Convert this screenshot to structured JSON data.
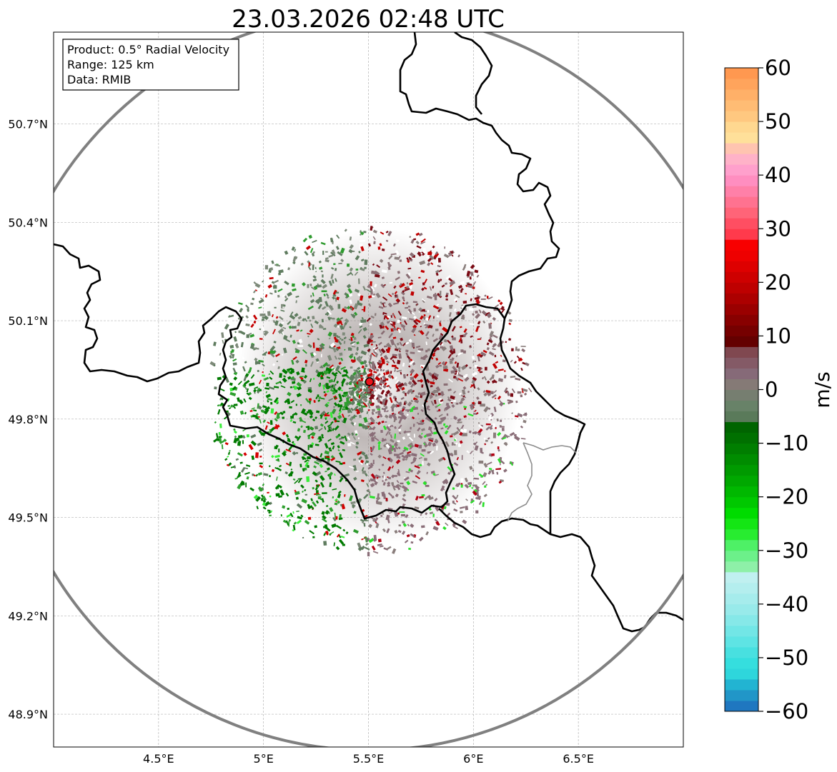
{
  "title": "23.03.2026 02:48 UTC",
  "info_box": {
    "product": "Product: 0.5° Radial Velocity",
    "range": "Range: 125 km",
    "source": "Data: RMIB"
  },
  "map": {
    "lon_range": [
      4.0,
      7.0
    ],
    "lat_range": [
      48.8,
      50.98
    ],
    "lon_ticks": [
      {
        "value": 4.5,
        "label": "4.5°E"
      },
      {
        "value": 5.0,
        "label": "5°E"
      },
      {
        "value": 5.5,
        "label": "5.5°E"
      },
      {
        "value": 6.0,
        "label": "6°E"
      },
      {
        "value": 6.5,
        "label": "6.5°E"
      }
    ],
    "lat_ticks": [
      {
        "value": 48.9,
        "label": "48.9°N"
      },
      {
        "value": 49.2,
        "label": "49.2°N"
      },
      {
        "value": 49.5,
        "label": "49.5°N"
      },
      {
        "value": 49.8,
        "label": "49.8°N"
      },
      {
        "value": 50.1,
        "label": "50.1°N"
      },
      {
        "value": 50.4,
        "label": "50.4°N"
      },
      {
        "value": 50.7,
        "label": "50.7°N"
      }
    ],
    "radar_site": {
      "lon": 5.505,
      "lat": 49.914,
      "range_km": 125
    },
    "ring_color": "#808080",
    "site_color": "#e8141a"
  },
  "colorbar": {
    "label": "m/s",
    "min": -60,
    "max": 60,
    "ticks": [
      {
        "value": 60,
        "label": "60"
      },
      {
        "value": 50,
        "label": "50"
      },
      {
        "value": 40,
        "label": "40"
      },
      {
        "value": 30,
        "label": "30"
      },
      {
        "value": 20,
        "label": "20"
      },
      {
        "value": 10,
        "label": "10"
      },
      {
        "value": 0,
        "label": "0"
      },
      {
        "value": -10,
        "label": "−10"
      },
      {
        "value": -20,
        "label": "−20"
      },
      {
        "value": -30,
        "label": "−30"
      },
      {
        "value": -40,
        "label": "−40"
      },
      {
        "value": -50,
        "label": "−50"
      },
      {
        "value": -60,
        "label": "−60"
      }
    ],
    "stops": [
      {
        "from": -60,
        "color": "#1f77c0"
      },
      {
        "from": -58,
        "color": "#2196c8"
      },
      {
        "from": -56,
        "color": "#22b4d2"
      },
      {
        "from": -54,
        "color": "#2ed6dc"
      },
      {
        "from": -52,
        "color": "#35dede"
      },
      {
        "from": -50,
        "color": "#48e0e0"
      },
      {
        "from": -48,
        "color": "#5ee4e4"
      },
      {
        "from": -46,
        "color": "#72e6e6"
      },
      {
        "from": -44,
        "color": "#86e8e8"
      },
      {
        "from": -42,
        "color": "#98eaea"
      },
      {
        "from": -40,
        "color": "#a6ecec"
      },
      {
        "from": -38,
        "color": "#b4eeee"
      },
      {
        "from": -36,
        "color": "#c0f0f0"
      },
      {
        "from": -34,
        "color": "#8ef0a8"
      },
      {
        "from": -32,
        "color": "#6cf08a"
      },
      {
        "from": -30,
        "color": "#4ef066"
      },
      {
        "from": -28,
        "color": "#28ec30"
      },
      {
        "from": -26,
        "color": "#14e614"
      },
      {
        "from": -24,
        "color": "#00dc00"
      },
      {
        "from": -22,
        "color": "#00c800"
      },
      {
        "from": -20,
        "color": "#00b800"
      },
      {
        "from": -18,
        "color": "#00a800"
      },
      {
        "from": -16,
        "color": "#009a00"
      },
      {
        "from": -14,
        "color": "#008c00"
      },
      {
        "from": -12,
        "color": "#007e00"
      },
      {
        "from": -10,
        "color": "#007000"
      },
      {
        "from": -8,
        "color": "#006400"
      },
      {
        "from": -6,
        "color": "#5a7a5a"
      },
      {
        "from": -4,
        "color": "#688268"
      },
      {
        "from": -2,
        "color": "#767e70"
      },
      {
        "from": 0,
        "color": "#857a76"
      },
      {
        "from": 2,
        "color": "#866a78"
      },
      {
        "from": 4,
        "color": "#845a66"
      },
      {
        "from": 6,
        "color": "#804850"
      },
      {
        "from": 8,
        "color": "#640000"
      },
      {
        "from": 10,
        "color": "#760000"
      },
      {
        "from": 12,
        "color": "#880000"
      },
      {
        "from": 14,
        "color": "#9a0000"
      },
      {
        "from": 16,
        "color": "#ac0000"
      },
      {
        "from": 18,
        "color": "#be0000"
      },
      {
        "from": 20,
        "color": "#ce0000"
      },
      {
        "from": 22,
        "color": "#de0000"
      },
      {
        "from": 24,
        "color": "#ee0000"
      },
      {
        "from": 26,
        "color": "#f80000"
      },
      {
        "from": 28,
        "color": "#ff3a4c"
      },
      {
        "from": 30,
        "color": "#ff4e62"
      },
      {
        "from": 32,
        "color": "#ff6478"
      },
      {
        "from": 34,
        "color": "#ff7290"
      },
      {
        "from": 36,
        "color": "#ff80a8"
      },
      {
        "from": 38,
        "color": "#ff8ec0"
      },
      {
        "from": 40,
        "color": "#ffa0cc"
      },
      {
        "from": 42,
        "color": "#ffb2c8"
      },
      {
        "from": 44,
        "color": "#ffc4b0"
      },
      {
        "from": 46,
        "color": "#ffe09a"
      },
      {
        "from": 48,
        "color": "#ffd890"
      },
      {
        "from": 50,
        "color": "#ffc880"
      },
      {
        "from": 52,
        "color": "#ffbc74"
      },
      {
        "from": 54,
        "color": "#ffb068"
      },
      {
        "from": 56,
        "color": "#ffa45c"
      },
      {
        "from": 58,
        "color": "#ff9850"
      }
    ]
  }
}
